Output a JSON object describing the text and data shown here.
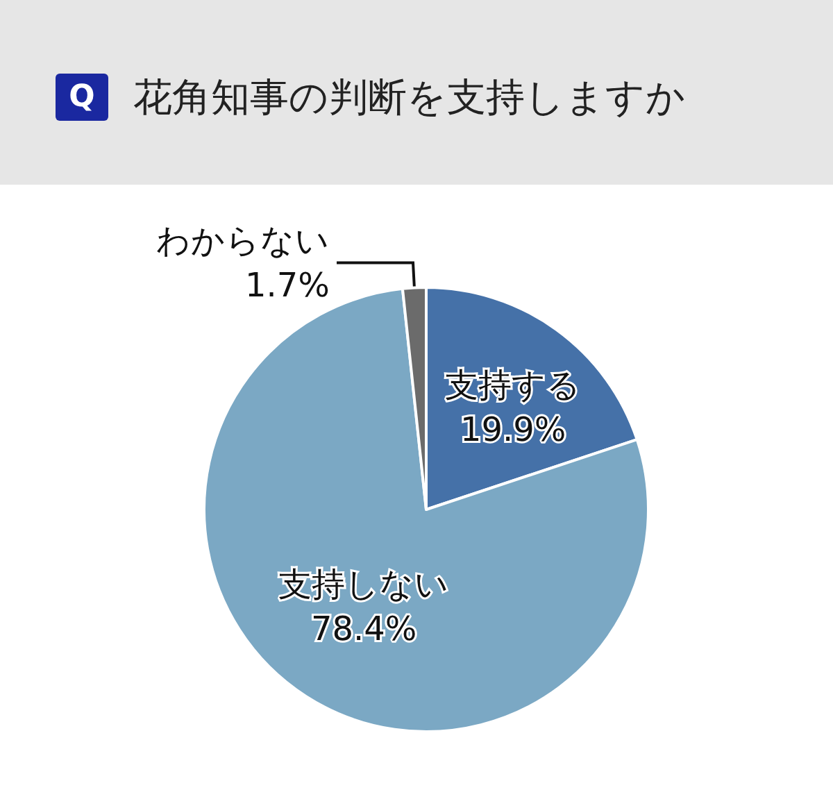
{
  "chart_data": {
    "type": "pie",
    "title": "花角知事の判断を支持しますか",
    "annotations": [
      "Q"
    ],
    "categories": [
      "支持する",
      "支持しない",
      "わからない"
    ],
    "values": [
      19.9,
      78.4,
      1.7
    ],
    "colors": [
      "#4571a8",
      "#7ba8c4",
      "#6b6b6b"
    ],
    "value_labels": [
      "19.9%",
      "78.4%",
      "1.7%"
    ],
    "legend": false
  }
}
